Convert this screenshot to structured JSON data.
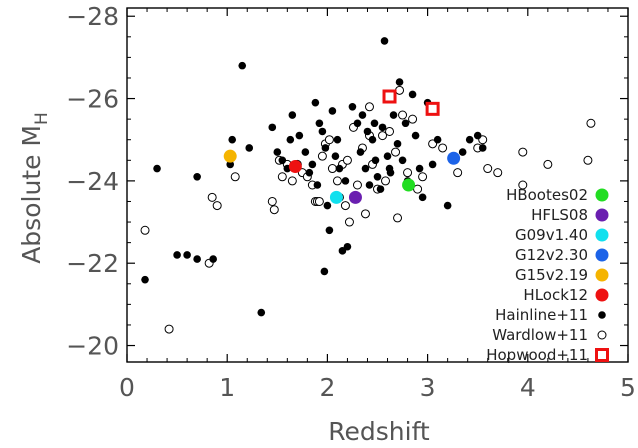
{
  "chart_data": {
    "type": "scatter",
    "xlabel": "Redshift",
    "ylabel": "Absolute M",
    "ylabel_sub": "H",
    "xlim": [
      0,
      5
    ],
    "ylim": [
      -19.6,
      -28.2
    ],
    "x_ticks": [
      0,
      1,
      2,
      3,
      4,
      5
    ],
    "x_tick_labels": [
      "0",
      "1",
      "2",
      "3",
      "4",
      "5"
    ],
    "y_ticks": [
      -20,
      -22,
      -24,
      -26,
      -28
    ],
    "y_tick_labels": [
      "−20",
      "−22",
      "−24",
      "−26",
      "−28"
    ],
    "grid": false,
    "legend_position": "lower-right",
    "series": [
      {
        "name": "HBootes02",
        "color": "#22dd22",
        "marker": "filled-circle",
        "points": [
          [
            2.81,
            -23.9
          ]
        ]
      },
      {
        "name": "HFLS08",
        "color": "#6a1fb0",
        "marker": "filled-circle",
        "points": [
          [
            2.28,
            -23.6
          ]
        ]
      },
      {
        "name": "G09v1.40",
        "color": "#11e0ee",
        "marker": "filled-circle",
        "points": [
          [
            2.09,
            -23.6
          ]
        ]
      },
      {
        "name": "G12v2.30",
        "color": "#1c63e8",
        "marker": "filled-circle",
        "points": [
          [
            3.26,
            -24.55
          ]
        ]
      },
      {
        "name": "G15v2.19",
        "color": "#f5b400",
        "marker": "filled-circle",
        "points": [
          [
            1.03,
            -24.6
          ]
        ]
      },
      {
        "name": "HLock12",
        "color": "#ee1111",
        "marker": "filled-circle",
        "points": [
          [
            1.68,
            -24.35
          ]
        ]
      },
      {
        "name": "Hainline+11",
        "color": "#000000",
        "marker": "small-filled-circle",
        "points": [
          [
            0.18,
            -21.6
          ],
          [
            0.5,
            -22.2
          ],
          [
            0.6,
            -22.2
          ],
          [
            0.7,
            -22.1
          ],
          [
            0.86,
            -22.1
          ],
          [
            0.3,
            -24.3
          ],
          [
            0.7,
            -24.1
          ],
          [
            1.05,
            -25.0
          ],
          [
            1.03,
            -24.4
          ],
          [
            1.15,
            -26.8
          ],
          [
            1.22,
            -24.8
          ],
          [
            1.34,
            -20.8
          ],
          [
            1.45,
            -25.3
          ],
          [
            1.5,
            -24.7
          ],
          [
            1.55,
            -24.5
          ],
          [
            1.6,
            -24.3
          ],
          [
            1.63,
            -25.0
          ],
          [
            1.65,
            -25.6
          ],
          [
            1.72,
            -25.1
          ],
          [
            1.78,
            -24.7
          ],
          [
            1.82,
            -24.2
          ],
          [
            1.85,
            -24.4
          ],
          [
            1.9,
            -23.9
          ],
          [
            1.92,
            -25.4
          ],
          [
            1.95,
            -25.2
          ],
          [
            1.98,
            -24.8
          ],
          [
            2.0,
            -23.4
          ],
          [
            2.02,
            -22.8
          ],
          [
            2.05,
            -25.7
          ],
          [
            2.1,
            -25.0
          ],
          [
            2.12,
            -24.3
          ],
          [
            2.15,
            -22.3
          ],
          [
            2.18,
            -24.0
          ],
          [
            2.2,
            -22.4
          ],
          [
            2.25,
            -25.8
          ],
          [
            2.3,
            -25.4
          ],
          [
            2.33,
            -24.7
          ],
          [
            2.38,
            -24.3
          ],
          [
            2.4,
            -25.2
          ],
          [
            2.42,
            -23.9
          ],
          [
            2.45,
            -25.0
          ],
          [
            2.48,
            -24.5
          ],
          [
            2.5,
            -24.1
          ],
          [
            2.53,
            -23.8
          ],
          [
            2.55,
            -25.3
          ],
          [
            2.57,
            -27.4
          ],
          [
            2.6,
            -24.6
          ],
          [
            2.63,
            -24.2
          ],
          [
            2.66,
            -25.6
          ],
          [
            2.7,
            -24.9
          ],
          [
            2.72,
            -26.4
          ],
          [
            2.75,
            -24.5
          ],
          [
            2.8,
            -24.0
          ],
          [
            2.85,
            -26.1
          ],
          [
            2.88,
            -25.1
          ],
          [
            2.92,
            -24.3
          ],
          [
            2.95,
            -23.6
          ],
          [
            3.0,
            -25.9
          ],
          [
            3.05,
            -24.4
          ],
          [
            3.1,
            -25.0
          ],
          [
            3.2,
            -23.4
          ],
          [
            3.35,
            -24.7
          ],
          [
            3.42,
            -25.0
          ],
          [
            3.5,
            -25.1
          ],
          [
            3.55,
            -24.8
          ],
          [
            1.97,
            -21.8
          ],
          [
            2.08,
            -24.6
          ],
          [
            2.35,
            -25.6
          ],
          [
            2.47,
            -25.4
          ],
          [
            2.62,
            -24.3
          ],
          [
            2.78,
            -25.4
          ],
          [
            1.88,
            -25.9
          ]
        ]
      },
      {
        "name": "Wardlow+11",
        "color": "#000000",
        "marker": "open-circle",
        "points": [
          [
            0.18,
            -22.8
          ],
          [
            0.42,
            -20.4
          ],
          [
            0.82,
            -22.0
          ],
          [
            0.85,
            -23.6
          ],
          [
            0.9,
            -23.4
          ],
          [
            1.08,
            -24.1
          ],
          [
            1.45,
            -23.5
          ],
          [
            1.47,
            -23.3
          ],
          [
            1.52,
            -24.5
          ],
          [
            1.55,
            -24.1
          ],
          [
            1.6,
            -24.4
          ],
          [
            1.65,
            -24.0
          ],
          [
            1.7,
            -24.4
          ],
          [
            1.75,
            -24.2
          ],
          [
            1.8,
            -24.1
          ],
          [
            1.85,
            -23.9
          ],
          [
            1.88,
            -23.5
          ],
          [
            1.9,
            -23.5
          ],
          [
            1.95,
            -24.6
          ],
          [
            1.98,
            -24.9
          ],
          [
            2.02,
            -25.0
          ],
          [
            2.05,
            -24.3
          ],
          [
            2.1,
            -24.0
          ],
          [
            2.12,
            -23.6
          ],
          [
            2.15,
            -24.4
          ],
          [
            2.18,
            -23.4
          ],
          [
            2.2,
            -24.5
          ],
          [
            2.22,
            -23.0
          ],
          [
            2.26,
            -25.3
          ],
          [
            2.3,
            -23.9
          ],
          [
            2.35,
            -24.8
          ],
          [
            2.38,
            -23.2
          ],
          [
            2.42,
            -25.8
          ],
          [
            2.45,
            -24.4
          ],
          [
            2.5,
            -23.8
          ],
          [
            2.55,
            -25.1
          ],
          [
            2.58,
            -24.0
          ],
          [
            2.62,
            -25.2
          ],
          [
            2.68,
            -24.7
          ],
          [
            2.72,
            -26.2
          ],
          [
            2.75,
            -25.6
          ],
          [
            2.8,
            -24.2
          ],
          [
            2.85,
            -25.5
          ],
          [
            2.9,
            -23.8
          ],
          [
            2.95,
            -24.1
          ],
          [
            3.05,
            -24.9
          ],
          [
            3.15,
            -24.8
          ],
          [
            3.3,
            -24.2
          ],
          [
            3.5,
            -24.8
          ],
          [
            3.55,
            -25.0
          ],
          [
            3.6,
            -24.3
          ],
          [
            3.7,
            -24.2
          ],
          [
            3.95,
            -23.9
          ],
          [
            3.95,
            -24.7
          ],
          [
            4.2,
            -24.4
          ],
          [
            4.6,
            -24.5
          ],
          [
            4.63,
            -25.4
          ],
          [
            2.7,
            -23.1
          ],
          [
            2.42,
            -25.1
          ],
          [
            1.92,
            -23.5
          ]
        ]
      },
      {
        "name": "Hopwood+11",
        "color": "#ee1111",
        "marker": "open-square",
        "points": [
          [
            2.62,
            -26.05
          ],
          [
            3.05,
            -25.75
          ]
        ]
      }
    ]
  }
}
